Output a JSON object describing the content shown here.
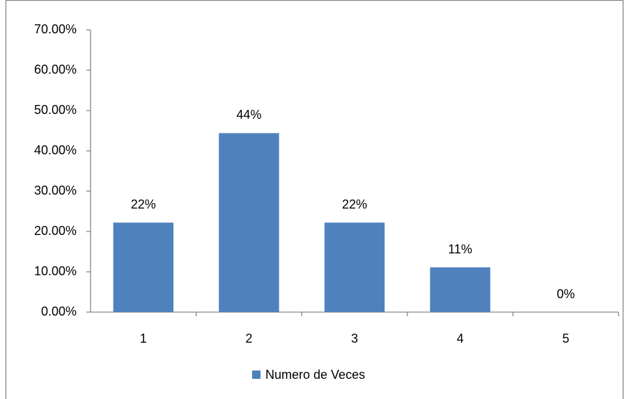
{
  "chart_data": {
    "type": "bar",
    "categories": [
      "1",
      "2",
      "3",
      "4",
      "5"
    ],
    "values": [
      22.2,
      44.4,
      22.2,
      11.1,
      0
    ],
    "value_labels": [
      "22%",
      "44%",
      "22%",
      "11%",
      "0%"
    ],
    "color": "#4f81bd",
    "series_name": "Numero de Veces",
    "ylim": [
      0,
      70
    ],
    "yticks": [
      {
        "value": 0,
        "label": "0.00%"
      },
      {
        "value": 10,
        "label": "10.00%"
      },
      {
        "value": 20,
        "label": "20.00%"
      },
      {
        "value": 30,
        "label": "30.00%"
      },
      {
        "value": 40,
        "label": "40.00%"
      },
      {
        "value": 50,
        "label": "50.00%"
      },
      {
        "value": 60,
        "label": "60.00%"
      },
      {
        "value": 70,
        "label": "70.00%"
      }
    ],
    "grid": false,
    "legend": "bottom"
  }
}
